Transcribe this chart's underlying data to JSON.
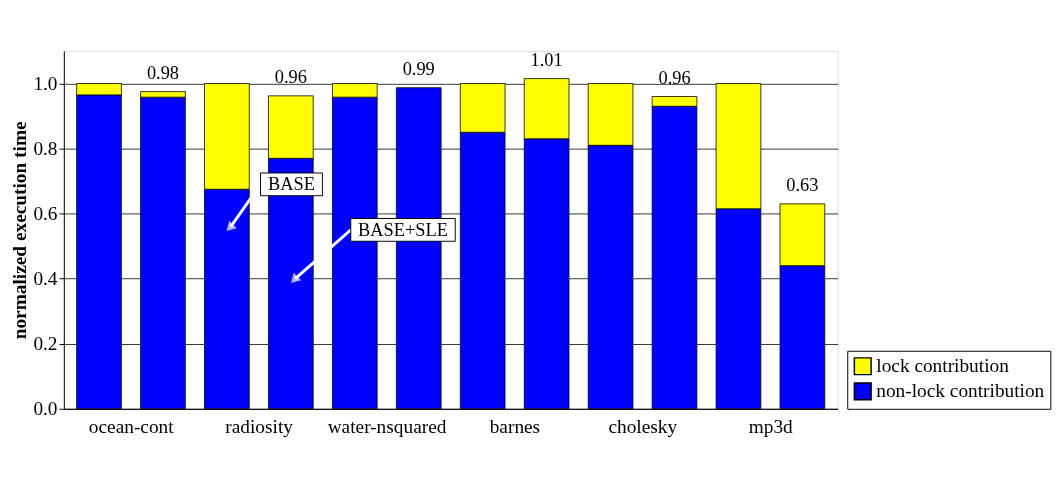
{
  "chart_data": {
    "type": "bar",
    "stacked": true,
    "ylabel": "normalized execution time",
    "categories": [
      "ocean-cont",
      null,
      "radiosity",
      null,
      "water-nsquared",
      null,
      "barnes",
      null,
      "cholesky",
      null,
      "mp3d",
      null
    ],
    "series": [
      {
        "name": "non-lock contribution",
        "color": "#0000ff",
        "values": [
          0.965,
          0.958,
          0.675,
          0.77,
          0.958,
          0.987,
          0.85,
          0.83,
          0.81,
          0.93,
          0.615,
          0.44
        ]
      },
      {
        "name": "lock contribution",
        "color": "#ffff00",
        "values": [
          0.035,
          0.017,
          0.325,
          0.192,
          0.042,
          null,
          0.15,
          0.185,
          0.19,
          0.03,
          0.385,
          0.19
        ]
      }
    ],
    "totals": [
      null,
      "0.98",
      null,
      "0.96",
      null,
      "0.99",
      null,
      "1.01",
      null,
      "0.96",
      null,
      "0.63"
    ],
    "annotations": [
      "BASE",
      "BASE+SLE"
    ],
    "ylim": [
      0,
      1.1
    ],
    "yticks": [
      {
        "value": 0,
        "label": "0.0"
      },
      {
        "value": 0.2,
        "label": "0.2"
      },
      {
        "value": 0.4,
        "label": "0.4"
      },
      {
        "value": 0.6,
        "label": "0.6"
      },
      {
        "value": 0.8,
        "label": "0.8"
      },
      {
        "value": 1.0,
        "label": "1.0"
      }
    ],
    "grid": "y",
    "legend": "bottom right"
  }
}
